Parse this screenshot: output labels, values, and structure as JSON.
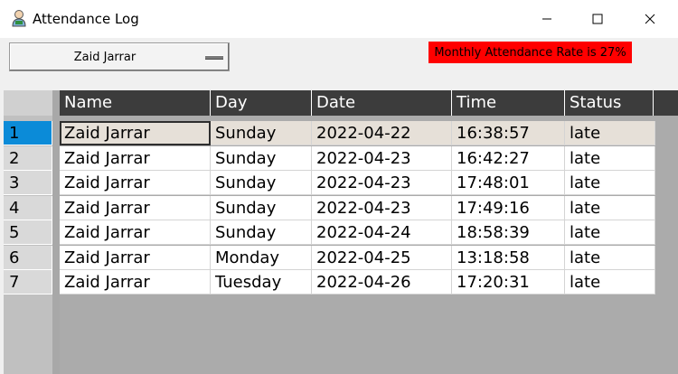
{
  "window": {
    "title": "Attendance Log",
    "minimize_glyph": "—",
    "maximize_glyph": "☐",
    "close_glyph": "✕",
    "app_icon": "user-icon"
  },
  "toolbar": {
    "selected_user": "Zaid Jarrar",
    "rate_text": "Monthly Attendance Rate is 27%",
    "rate_color": "#ff0000"
  },
  "table": {
    "columns": [
      "Name",
      "Day",
      "Date",
      "Time",
      "Status"
    ],
    "selected_row": 1,
    "rows": [
      {
        "index": "1",
        "cells": [
          "Zaid Jarrar",
          "Sunday",
          "2022-04-22",
          "16:38:57",
          "late"
        ]
      },
      {
        "index": "2",
        "cells": [
          "Zaid Jarrar",
          "Sunday",
          "2022-04-23",
          "16:42:27",
          "late"
        ]
      },
      {
        "index": "3",
        "cells": [
          "Zaid Jarrar",
          "Sunday",
          "2022-04-23",
          "17:48:01",
          "late"
        ]
      },
      {
        "index": "4",
        "cells": [
          "Zaid Jarrar",
          "Sunday",
          "2022-04-23",
          "17:49:16",
          "late"
        ]
      },
      {
        "index": "5",
        "cells": [
          "Zaid Jarrar",
          "Sunday",
          "2022-04-24",
          "18:58:39",
          "late"
        ]
      },
      {
        "index": "6",
        "cells": [
          "Zaid Jarrar",
          "Monday",
          "2022-04-25",
          "13:18:58",
          "late"
        ]
      },
      {
        "index": "7",
        "cells": [
          "Zaid Jarrar",
          "Tuesday",
          "2022-04-26",
          "17:20:31",
          "late"
        ]
      }
    ]
  }
}
